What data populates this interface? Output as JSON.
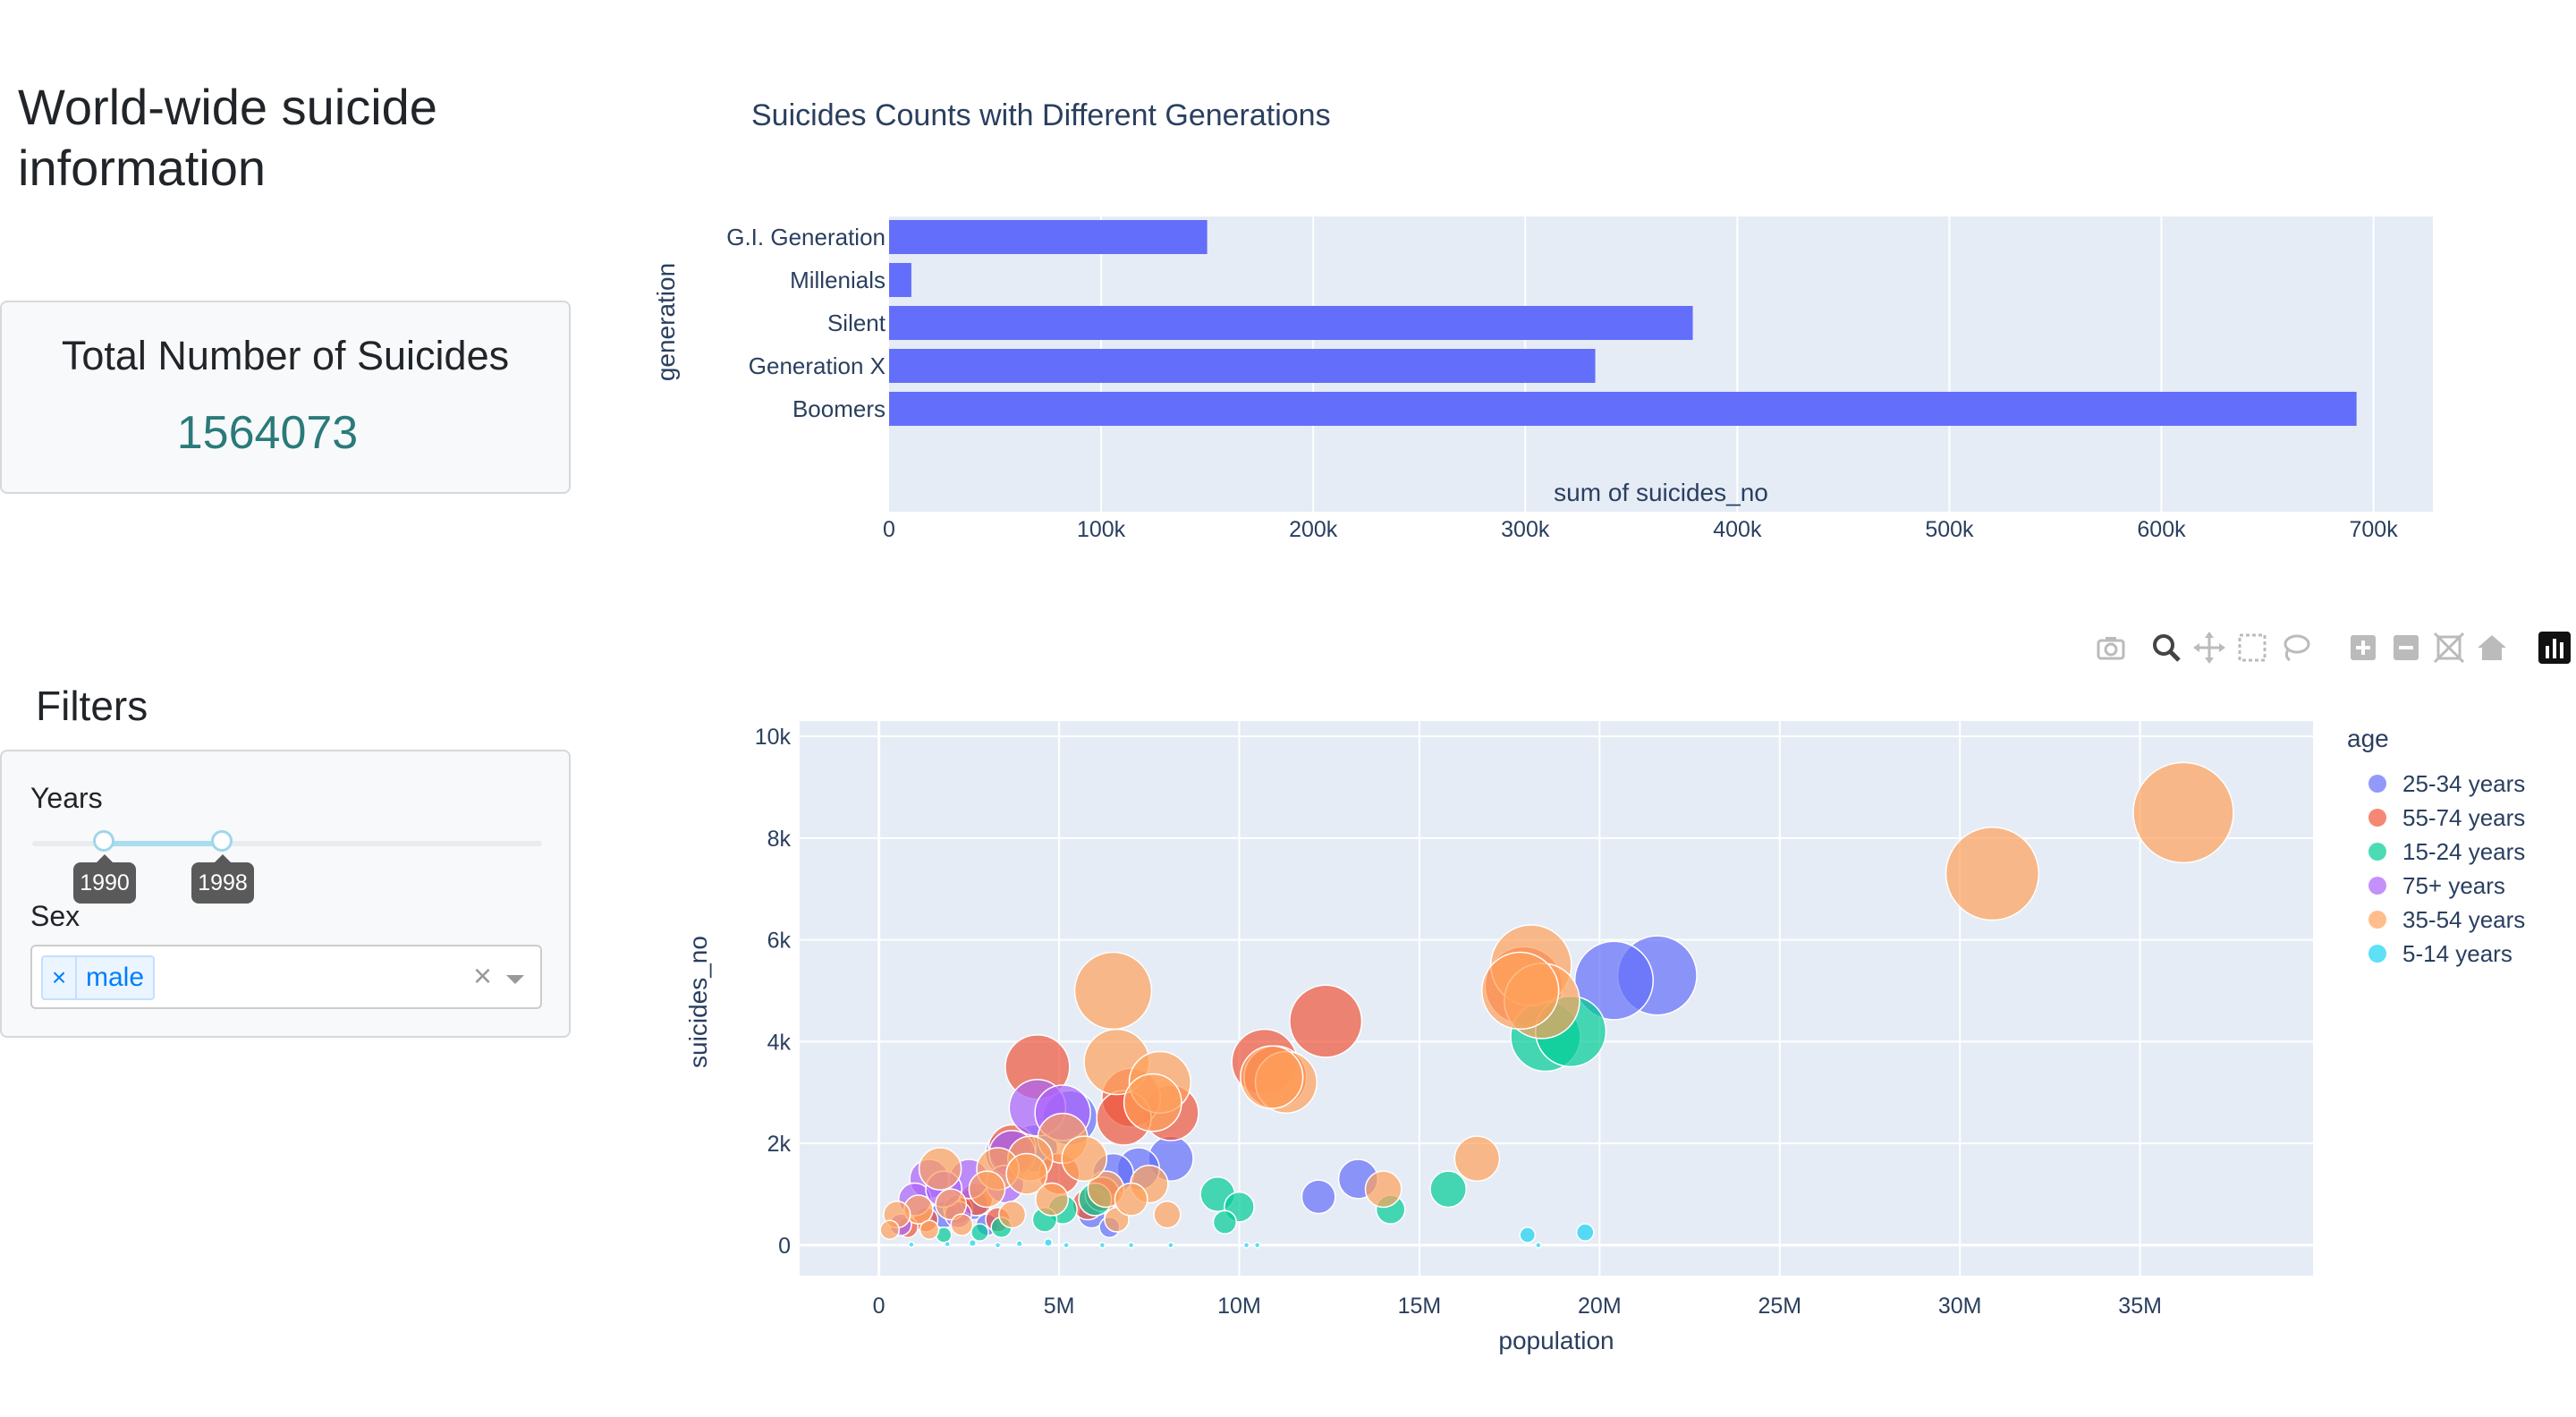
{
  "page": {
    "title": "World-wide suicide information"
  },
  "summary": {
    "label": "Total Number of Suicides",
    "value": "1564073"
  },
  "filters": {
    "title": "Filters",
    "years": {
      "label": "Years",
      "start": "1990",
      "end": "1998"
    },
    "sex": {
      "label": "Sex",
      "selected": "male",
      "remove_symbol": "×",
      "clear_symbol": "×"
    }
  },
  "modebar": {
    "buttons": [
      "camera-icon",
      "zoom-icon",
      "pan-icon",
      "box-select-icon",
      "lasso-icon",
      "zoom-in-icon",
      "zoom-out-icon",
      "autoscale-icon",
      "reset-axes-icon",
      "plotly-logo-icon"
    ]
  },
  "colors": {
    "bar": "#636efa",
    "plot_bg": "#e5ecf6",
    "series": {
      "25-34 years": "#636efa",
      "55-74 years": "#ef553b",
      "15-24 years": "#00cc96",
      "75+ years": "#ab63fa",
      "35-54 years": "#ffa15a",
      "5-14 years": "#19d3f3"
    }
  },
  "chart_data": [
    {
      "type": "bar",
      "orientation": "horizontal",
      "title": "Suicides Counts with Different Generations",
      "xlabel": "sum of suicides_no",
      "ylabel": "generation",
      "categories": [
        "G.I. Generation",
        "Millenials",
        "Silent",
        "Generation X",
        "Boomers"
      ],
      "values": [
        150000,
        10500,
        379000,
        333000,
        692000
      ],
      "xlim": [
        0,
        728000
      ],
      "xticks": [
        0,
        100000,
        200000,
        300000,
        400000,
        500000,
        600000,
        700000
      ],
      "xtick_labels": [
        "0",
        "100k",
        "200k",
        "300k",
        "400k",
        "500k",
        "600k",
        "700k"
      ],
      "grid": true
    },
    {
      "type": "scatter",
      "subtype": "bubble",
      "xlabel": "population",
      "ylabel": "suicides_no",
      "xlim": [
        -2200000,
        39800000
      ],
      "ylim": [
        -600,
        10300
      ],
      "xticks": [
        0,
        5000000,
        10000000,
        15000000,
        20000000,
        25000000,
        30000000,
        35000000
      ],
      "xtick_labels": [
        "0",
        "5M",
        "10M",
        "15M",
        "20M",
        "25M",
        "30M",
        "35M"
      ],
      "yticks": [
        0,
        2000,
        4000,
        6000,
        8000,
        10000
      ],
      "ytick_labels": [
        "0",
        "2k",
        "4k",
        "6k",
        "8k",
        "10k"
      ],
      "legend": {
        "title": "age",
        "position": "right"
      },
      "grid": true,
      "series": [
        {
          "name": "25-34 years",
          "points": [
            [
              21600000,
              5300
            ],
            [
              20400000,
              5200
            ],
            [
              8100000,
              1700
            ],
            [
              7200000,
              1500
            ],
            [
              6500000,
              1400
            ],
            [
              4300000,
              1900
            ],
            [
              3600000,
              1800
            ],
            [
              5300000,
              2500
            ],
            [
              13300000,
              1300
            ],
            [
              12200000,
              950
            ],
            [
              5900000,
              600
            ],
            [
              6400000,
              350
            ],
            [
              2600000,
              800
            ],
            [
              1800000,
              600
            ],
            [
              3000000,
              400
            ]
          ]
        },
        {
          "name": "55-74 years",
          "points": [
            [
              12400000,
              4400
            ],
            [
              10700000,
              3600
            ],
            [
              11000000,
              3300
            ],
            [
              8100000,
              2600
            ],
            [
              7000000,
              2900
            ],
            [
              6800000,
              2500
            ],
            [
              4400000,
              3500
            ],
            [
              3700000,
              1900
            ],
            [
              5000000,
              1400
            ],
            [
              5800000,
              800
            ],
            [
              2200000,
              700
            ],
            [
              1300000,
              500
            ],
            [
              800000,
              350
            ],
            [
              3300000,
              500
            ],
            [
              2700000,
              900
            ],
            [
              6200000,
              1000
            ],
            [
              17900000,
              5100
            ]
          ]
        },
        {
          "name": "15-24 years",
          "points": [
            [
              18500000,
              4100
            ],
            [
              19200000,
              4200
            ],
            [
              15800000,
              1100
            ],
            [
              14200000,
              700
            ],
            [
              9400000,
              1000
            ],
            [
              10000000,
              750
            ],
            [
              9600000,
              450
            ],
            [
              5100000,
              700
            ],
            [
              4600000,
              500
            ],
            [
              3400000,
              350
            ],
            [
              2800000,
              250
            ],
            [
              6000000,
              900
            ],
            [
              1800000,
              200
            ]
          ]
        },
        {
          "name": "75+ years",
          "points": [
            [
              4400000,
              2700
            ],
            [
              5100000,
              2600
            ],
            [
              3700000,
              1800
            ],
            [
              2500000,
              1300
            ],
            [
              1400000,
              1300
            ],
            [
              1000000,
              900
            ],
            [
              2200000,
              600
            ],
            [
              3500000,
              1200
            ],
            [
              600000,
              400
            ],
            [
              1800000,
              1100
            ]
          ]
        },
        {
          "name": "35-54 years",
          "points": [
            [
              36200000,
              8500
            ],
            [
              30900000,
              7300
            ],
            [
              18100000,
              5500
            ],
            [
              18400000,
              4800
            ],
            [
              17800000,
              5000
            ],
            [
              6500000,
              5000
            ],
            [
              6600000,
              3600
            ],
            [
              7800000,
              3200
            ],
            [
              7600000,
              2800
            ],
            [
              11300000,
              3200
            ],
            [
              10900000,
              3300
            ],
            [
              5100000,
              2100
            ],
            [
              4200000,
              1700
            ],
            [
              3300000,
              1500
            ],
            [
              16600000,
              1700
            ],
            [
              14000000,
              1100
            ],
            [
              7500000,
              1200
            ],
            [
              6300000,
              1100
            ],
            [
              4100000,
              1400
            ],
            [
              3000000,
              1100
            ],
            [
              2000000,
              800
            ],
            [
              1700000,
              1500
            ],
            [
              1100000,
              700
            ],
            [
              500000,
              600
            ],
            [
              8000000,
              600
            ],
            [
              6600000,
              500
            ],
            [
              2300000,
              400
            ],
            [
              1400000,
              300
            ],
            [
              300000,
              300
            ],
            [
              4800000,
              900
            ],
            [
              5700000,
              1700
            ],
            [
              3700000,
              600
            ],
            [
              7000000,
              900
            ]
          ]
        },
        {
          "name": "5-14 years",
          "points": [
            [
              19600000,
              250
            ],
            [
              18000000,
              200
            ],
            [
              10500000,
              0
            ],
            [
              8100000,
              0
            ],
            [
              7000000,
              0
            ],
            [
              6200000,
              0
            ],
            [
              5200000,
              0
            ],
            [
              4700000,
              50
            ],
            [
              3900000,
              30
            ],
            [
              3300000,
              0
            ],
            [
              2600000,
              40
            ],
            [
              1900000,
              20
            ],
            [
              900000,
              10
            ],
            [
              18300000,
              0
            ],
            [
              10200000,
              0
            ]
          ]
        }
      ]
    }
  ]
}
